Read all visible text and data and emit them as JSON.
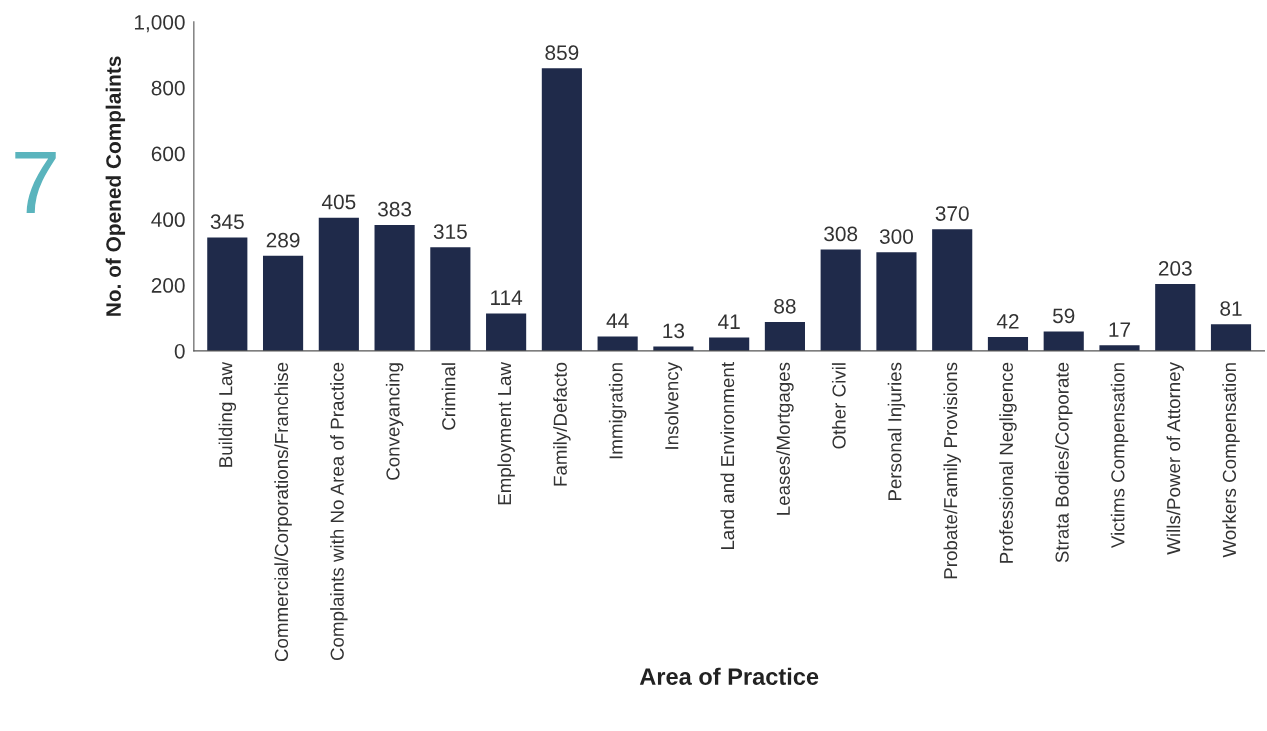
{
  "chart_data": {
    "type": "bar",
    "xlabel": "Area of Practice",
    "ylabel": "No. of Opened Complaints",
    "categories": [
      "Building Law",
      "Commercial/Corporations/Franchise",
      "Complaints with No Area of Practice",
      "Conveyancing",
      "Criminal",
      "Employment Law",
      "Family/Defacto",
      "Immigration",
      "Insolvency",
      "Land and Environment",
      "Leases/Mortgages",
      "Other Civil",
      "Personal Injuries",
      "Probate/Family Provisions",
      "Professional Negligence",
      "Strata Bodies/Corporate",
      "Victims Compensation",
      "Wills/Power of Attorney",
      "Workers Compensation"
    ],
    "values": [
      345,
      289,
      405,
      383,
      315,
      114,
      859,
      44,
      13,
      41,
      88,
      308,
      300,
      370,
      42,
      59,
      17,
      203,
      81
    ],
    "color": "#1f2a4a",
    "ylim": [
      0,
      1000
    ],
    "yticks": [
      0,
      200,
      400,
      600,
      800,
      {
        "value": 1000,
        "label": "1,000"
      }
    ],
    "grid": false,
    "legend": false,
    "data_labels": true,
    "annotations": [
      "7"
    ]
  }
}
